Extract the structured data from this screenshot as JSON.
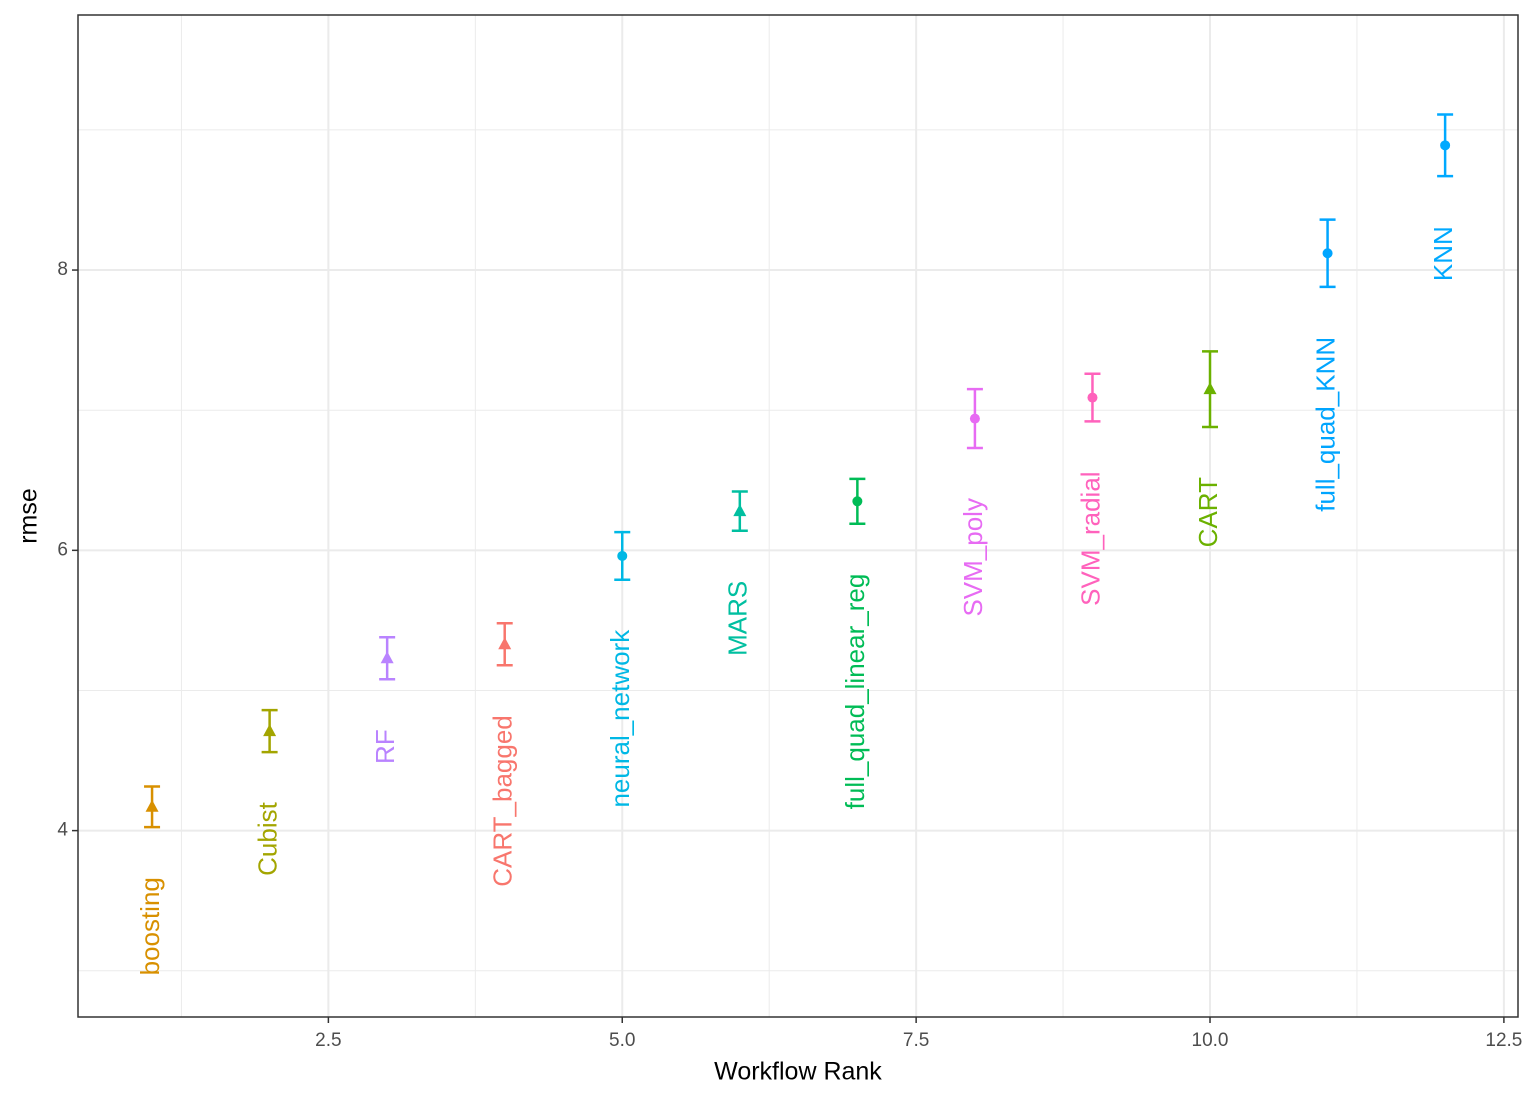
{
  "chart_data": {
    "type": "scatter",
    "x_label": "Workflow Rank",
    "y_label": "rmse",
    "labels": [
      "boosting",
      "Cubist",
      "RF",
      "CART_bagged",
      "neural_network",
      "MARS",
      "full_quad_linear_reg",
      "SVM_poly",
      "SVM_radial",
      "CART",
      "full_quad_KNN",
      "KNN"
    ],
    "x": [
      1,
      2,
      3,
      4,
      5,
      6,
      7,
      8,
      9,
      10,
      11,
      12
    ],
    "values": [
      4.17,
      4.71,
      5.23,
      5.33,
      5.96,
      6.28,
      6.35,
      6.94,
      7.09,
      7.15,
      8.12,
      8.89
    ],
    "errors": [
      0.145,
      0.15,
      0.15,
      0.15,
      0.17,
      0.14,
      0.16,
      0.21,
      0.17,
      0.27,
      0.24,
      0.22
    ],
    "colors": [
      "#D89000",
      "#A3A500",
      "#B983FF",
      "#F8766D",
      "#00B8E5",
      "#00BFA0",
      "#00BC56",
      "#E76BF3",
      "#FF62BC",
      "#6BB100",
      "#00A5FF",
      "#00A9FF"
    ],
    "markers": [
      "triangle",
      "triangle",
      "triangle",
      "triangle",
      "circle",
      "triangle",
      "circle",
      "circle",
      "circle",
      "triangle",
      "circle",
      "circle"
    ],
    "xlim": [
      0.37,
      12.62
    ],
    "ylim": [
      2.67,
      9.82
    ],
    "xticks": [
      2.5,
      {
        "value": 5,
        "label": "5.0"
      },
      {
        "value": 7.5,
        "label": "7.5"
      },
      {
        "value": 10,
        "label": "10.0"
      },
      12.5
    ],
    "yticks": [
      4,
      6,
      8
    ],
    "grid": true
  }
}
